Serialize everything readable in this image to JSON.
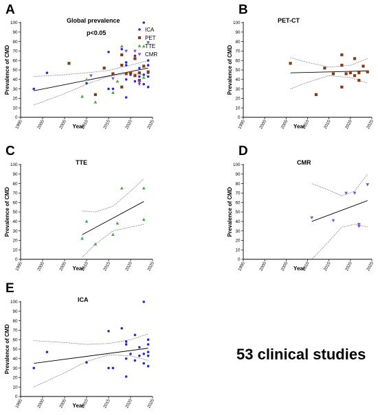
{
  "colors": {
    "ICA": "#2b2bd6",
    "PET": "#8b3a10",
    "TTE": "#3cae3c",
    "CMR": "#7c4fd8"
  },
  "caption": "53 clinical studies",
  "chart_data": [
    {
      "panel": "A",
      "title": "Global prevalence",
      "type": "scatter",
      "xlabel": "Year",
      "ylabel": "Prevalence of CMD",
      "xlim": [
        1995,
        2025
      ],
      "ylim": [
        0,
        100
      ],
      "xticks": [
        1995,
        2000,
        2005,
        2010,
        2015,
        2020,
        2025
      ],
      "yticks": [
        0,
        10,
        20,
        30,
        40,
        50,
        60,
        70,
        80,
        90,
        100
      ],
      "annotation": "p<0.05",
      "legend": [
        "ICA",
        "PET",
        "TTE",
        "CMR"
      ],
      "legend_position": "right",
      "series": [
        {
          "name": "ICA",
          "marker": "circle",
          "points": [
            [
              1998,
              30
            ],
            [
              2001,
              47
            ],
            [
              2010,
              36
            ],
            [
              2015,
              69
            ],
            [
              2015,
              30
            ],
            [
              2016,
              30
            ],
            [
              2018,
              72
            ],
            [
              2019,
              21
            ],
            [
              2019,
              55
            ],
            [
              2019,
              58
            ],
            [
              2019,
              40
            ],
            [
              2020,
              45
            ],
            [
              2021,
              38
            ],
            [
              2021,
              65
            ],
            [
              2022,
              43
            ],
            [
              2022,
              52
            ],
            [
              2023,
              100
            ],
            [
              2023,
              45
            ],
            [
              2023,
              35
            ],
            [
              2024,
              43
            ],
            [
              2024,
              32
            ],
            [
              2024,
              60
            ],
            [
              2024,
              55
            ],
            [
              2024,
              47
            ]
          ]
        },
        {
          "name": "PET",
          "marker": "square",
          "points": [
            [
              2006,
              57
            ],
            [
              2012,
              24
            ],
            [
              2014,
              52
            ],
            [
              2016,
              46
            ],
            [
              2018,
              66
            ],
            [
              2018,
              55
            ],
            [
              2018,
              32
            ],
            [
              2019,
              46
            ],
            [
              2020,
              47
            ],
            [
              2021,
              62
            ],
            [
              2021,
              44
            ],
            [
              2022,
              39
            ],
            [
              2022,
              47
            ],
            [
              2023,
              54
            ],
            [
              2024,
              48
            ]
          ]
        },
        {
          "name": "TTE",
          "marker": "triangle-up",
          "points": [
            [
              2009,
              22
            ],
            [
              2010,
              40
            ],
            [
              2012,
              16
            ],
            [
              2016,
              26
            ],
            [
              2017,
              38
            ],
            [
              2018,
              75
            ],
            [
              2023,
              75
            ],
            [
              2023,
              42
            ]
          ]
        },
        {
          "name": "CMR",
          "marker": "triangle-down",
          "points": [
            [
              2011,
              44
            ],
            [
              2016,
              41
            ],
            [
              2019,
              70
            ],
            [
              2021,
              70
            ],
            [
              2022,
              35
            ],
            [
              2022,
              37
            ],
            [
              2024,
              79
            ]
          ]
        }
      ],
      "fit": {
        "x": [
          1998,
          2024
        ],
        "y": [
          28,
          52
        ]
      },
      "ci_upper": [
        [
          1998,
          43
        ],
        [
          2005,
          45
        ],
        [
          2010,
          47
        ],
        [
          2015,
          49.5
        ],
        [
          2020,
          55
        ],
        [
          2024,
          60
        ]
      ],
      "ci_lower": [
        [
          1998,
          13
        ],
        [
          2005,
          25
        ],
        [
          2010,
          35
        ],
        [
          2015,
          43
        ],
        [
          2020,
          47
        ],
        [
          2024,
          44
        ]
      ]
    },
    {
      "panel": "B",
      "title": "PET-CT",
      "type": "scatter",
      "xlabel": "Year",
      "ylabel": "Prevalence of CMD",
      "xlim": [
        1995,
        2025
      ],
      "ylim": [
        0,
        100
      ],
      "xticks": [
        1995,
        2000,
        2005,
        2010,
        2015,
        2020,
        2025
      ],
      "yticks": [
        0,
        10,
        20,
        30,
        40,
        50,
        60,
        70,
        80,
        90,
        100
      ],
      "series": [
        {
          "name": "PET",
          "marker": "square",
          "points": [
            [
              2006,
              57
            ],
            [
              2012,
              24
            ],
            [
              2014,
              52
            ],
            [
              2016,
              46
            ],
            [
              2018,
              66
            ],
            [
              2018,
              55
            ],
            [
              2018,
              32
            ],
            [
              2019,
              46
            ],
            [
              2020,
              47
            ],
            [
              2021,
              62
            ],
            [
              2021,
              44
            ],
            [
              2022,
              39
            ],
            [
              2022,
              47
            ],
            [
              2023,
              54
            ],
            [
              2024,
              48
            ]
          ]
        }
      ],
      "fit": {
        "x": [
          2006,
          2024
        ],
        "y": [
          47,
          49
        ]
      },
      "ci_upper": [
        [
          2006,
          63
        ],
        [
          2010,
          58
        ],
        [
          2015,
          53
        ],
        [
          2020,
          55
        ],
        [
          2024,
          62
        ]
      ],
      "ci_lower": [
        [
          2006,
          30
        ],
        [
          2010,
          37
        ],
        [
          2015,
          44
        ],
        [
          2020,
          42
        ],
        [
          2024,
          36
        ]
      ]
    },
    {
      "panel": "C",
      "title": "TTE",
      "type": "scatter",
      "xlabel": "Year",
      "ylabel": "Prevalence of CMD",
      "xlim": [
        1995,
        2025
      ],
      "ylim": [
        0,
        100
      ],
      "xticks": [
        1995,
        2000,
        2005,
        2010,
        2015,
        2020,
        2025
      ],
      "yticks": [
        0,
        10,
        20,
        30,
        40,
        50,
        60,
        70,
        80,
        90,
        100
      ],
      "series": [
        {
          "name": "TTE",
          "marker": "triangle-up",
          "points": [
            [
              2009,
              22
            ],
            [
              2010,
              40
            ],
            [
              2012,
              16
            ],
            [
              2016,
              26
            ],
            [
              2017,
              38
            ],
            [
              2018,
              75
            ],
            [
              2023,
              75
            ],
            [
              2023,
              42
            ]
          ]
        }
      ],
      "fit": {
        "x": [
          2009,
          2023
        ],
        "y": [
          26,
          61
        ]
      },
      "ci_upper": [
        [
          2009,
          51
        ],
        [
          2012,
          50
        ],
        [
          2016,
          56
        ],
        [
          2020,
          72
        ],
        [
          2023,
          85
        ]
      ],
      "ci_lower": [
        [
          2009,
          2
        ],
        [
          2012,
          16
        ],
        [
          2016,
          30
        ],
        [
          2020,
          34
        ],
        [
          2023,
          37
        ]
      ]
    },
    {
      "panel": "D",
      "title": "CMR",
      "type": "scatter",
      "xlabel": "Year",
      "ylabel": "Prevalence of CMD",
      "xlim": [
        1995,
        2025
      ],
      "ylim": [
        0,
        100
      ],
      "xticks": [
        1995,
        2000,
        2005,
        2010,
        2015,
        2020,
        2025
      ],
      "yticks": [
        0,
        10,
        20,
        30,
        40,
        50,
        60,
        70,
        80,
        90,
        100
      ],
      "series": [
        {
          "name": "CMR",
          "marker": "triangle-down",
          "points": [
            [
              2011,
              44
            ],
            [
              2016,
              41
            ],
            [
              2019,
              70
            ],
            [
              2021,
              70
            ],
            [
              2022,
              35
            ],
            [
              2022,
              37
            ],
            [
              2024,
              79
            ]
          ]
        }
      ],
      "fit": {
        "x": [
          2011,
          2024
        ],
        "y": [
          40,
          62
        ]
      },
      "ci_upper": [
        [
          2011,
          80
        ],
        [
          2015,
          73
        ],
        [
          2018,
          67
        ],
        [
          2021,
          72
        ],
        [
          2024,
          90
        ]
      ],
      "ci_lower": [
        [
          2011,
          0
        ],
        [
          2015,
          19
        ],
        [
          2018,
          34
        ],
        [
          2021,
          37
        ],
        [
          2024,
          34
        ]
      ]
    },
    {
      "panel": "E",
      "title": "ICA",
      "type": "scatter",
      "xlabel": "Year",
      "ylabel": "Prevalence of CMD",
      "xlim": [
        1995,
        2025
      ],
      "ylim": [
        0,
        100
      ],
      "xticks": [
        1995,
        2000,
        2005,
        2010,
        2015,
        2020,
        2025
      ],
      "yticks": [
        0,
        10,
        20,
        30,
        40,
        50,
        60,
        70,
        80,
        90,
        100
      ],
      "series": [
        {
          "name": "ICA",
          "marker": "circle",
          "points": [
            [
              1998,
              30
            ],
            [
              2001,
              47
            ],
            [
              2010,
              36
            ],
            [
              2015,
              69
            ],
            [
              2015,
              30
            ],
            [
              2016,
              30
            ],
            [
              2018,
              72
            ],
            [
              2019,
              21
            ],
            [
              2019,
              55
            ],
            [
              2019,
              58
            ],
            [
              2019,
              40
            ],
            [
              2020,
              45
            ],
            [
              2021,
              38
            ],
            [
              2021,
              65
            ],
            [
              2022,
              43
            ],
            [
              2022,
              52
            ],
            [
              2023,
              100
            ],
            [
              2023,
              45
            ],
            [
              2023,
              35
            ],
            [
              2024,
              43
            ],
            [
              2024,
              32
            ],
            [
              2024,
              60
            ],
            [
              2024,
              55
            ],
            [
              2024,
              47
            ]
          ]
        }
      ],
      "fit": {
        "x": [
          1998,
          2024
        ],
        "y": [
          35,
          51
        ]
      },
      "ci_upper": [
        [
          1998,
          59
        ],
        [
          2005,
          57
        ],
        [
          2010,
          55
        ],
        [
          2015,
          56
        ],
        [
          2020,
          60
        ],
        [
          2024,
          66
        ]
      ],
      "ci_lower": [
        [
          1998,
          10
        ],
        [
          2005,
          25
        ],
        [
          2010,
          37
        ],
        [
          2015,
          44
        ],
        [
          2020,
          43
        ],
        [
          2024,
          38
        ]
      ]
    }
  ]
}
